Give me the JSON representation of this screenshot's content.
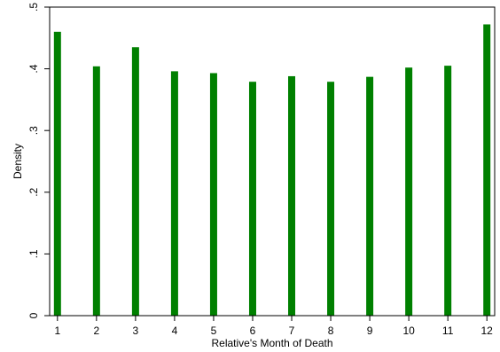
{
  "chart_data": {
    "type": "bar",
    "title": "",
    "xlabel": "Relative's Month of Death",
    "ylabel": "Density",
    "categories": [
      "1",
      "2",
      "3",
      "4",
      "5",
      "6",
      "7",
      "8",
      "9",
      "10",
      "11",
      "12"
    ],
    "x": [
      1,
      2,
      3,
      4,
      5,
      6,
      7,
      8,
      9,
      10,
      11,
      12
    ],
    "values": [
      0.46,
      0.404,
      0.435,
      0.396,
      0.393,
      0.379,
      0.388,
      0.379,
      0.387,
      0.402,
      0.405,
      0.472
    ],
    "xlim": [
      0.8,
      12.2
    ],
    "ylim": [
      0,
      0.5
    ],
    "x_ticks": [
      "1",
      "2",
      "3",
      "4",
      "5",
      "6",
      "7",
      "8",
      "9",
      "10",
      "11",
      "12"
    ],
    "y_ticks": [
      {
        "value": 0,
        "label": "0"
      },
      {
        "value": 0.1,
        "label": ".1"
      },
      {
        "value": 0.2,
        "label": ".2"
      },
      {
        "value": 0.3,
        "label": ".3"
      },
      {
        "value": 0.4,
        "label": ".4"
      },
      {
        "value": 0.5,
        "label": ".5"
      }
    ],
    "grid": false,
    "legend": "none",
    "colors": {
      "bar": "#008000",
      "axis": "#000000",
      "background": "#ffffff"
    }
  }
}
